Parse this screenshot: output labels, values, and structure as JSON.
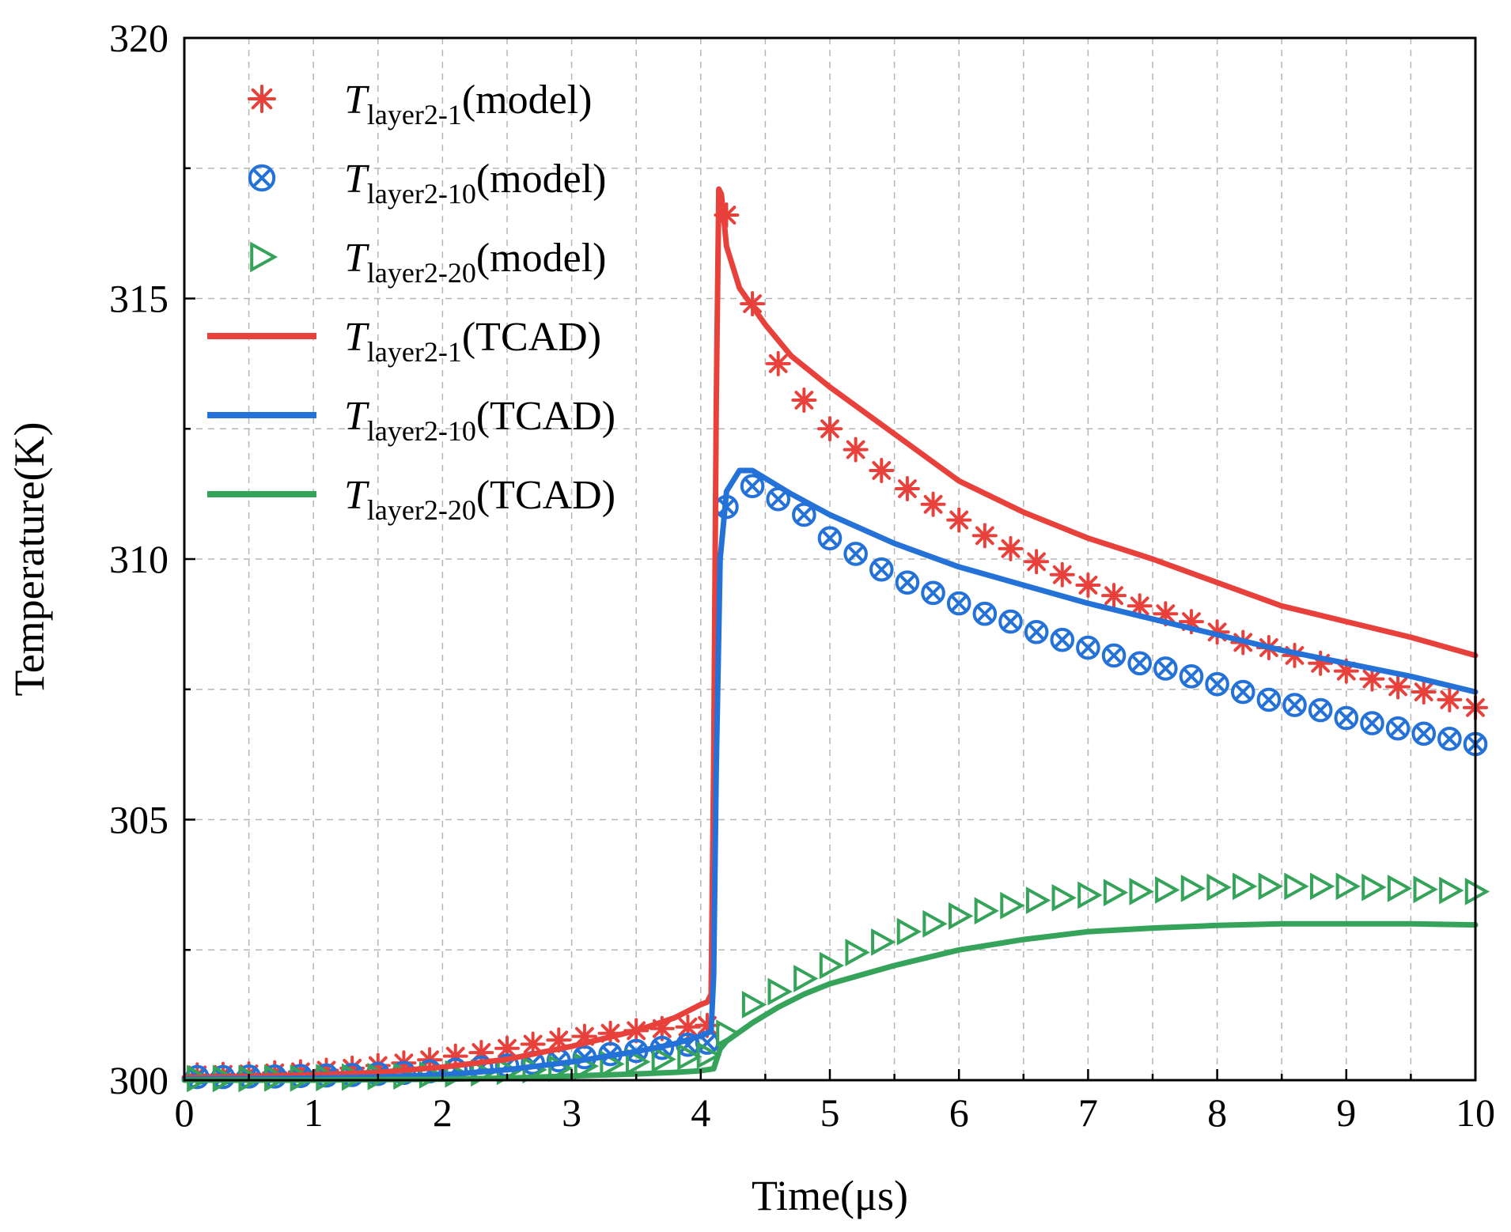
{
  "chart_data": {
    "type": "line",
    "xlabel": "Time(μs)",
    "ylabel": "Temperature(K)",
    "xlim": [
      0,
      10
    ],
    "ylim": [
      300,
      320
    ],
    "xticks": [
      0,
      1,
      2,
      3,
      4,
      5,
      6,
      7,
      8,
      9,
      10
    ],
    "yticks": [
      300,
      305,
      310,
      315,
      320
    ],
    "grid": true,
    "legend_position": "top-left",
    "series": [
      {
        "name": "T_layer2-1(model)",
        "legend_main": "T",
        "legend_sub": "layer2-1",
        "legend_suffix": "(model)",
        "color": "#e8413c",
        "style": "markers",
        "marker": "asterisk",
        "x": [
          0.1,
          0.3,
          0.5,
          0.7,
          0.9,
          1.1,
          1.3,
          1.5,
          1.7,
          1.9,
          2.1,
          2.3,
          2.5,
          2.7,
          2.9,
          3.1,
          3.3,
          3.5,
          3.7,
          3.9,
          4.05,
          4.2,
          4.4,
          4.6,
          4.8,
          5.0,
          5.2,
          5.4,
          5.6,
          5.8,
          6.0,
          6.2,
          6.4,
          6.6,
          6.8,
          7.0,
          7.2,
          7.4,
          7.6,
          7.8,
          8.0,
          8.2,
          8.4,
          8.6,
          8.8,
          9.0,
          9.2,
          9.4,
          9.6,
          9.8,
          10.0
        ],
        "y": [
          300.1,
          300.11,
          300.12,
          300.14,
          300.16,
          300.19,
          300.23,
          300.28,
          300.33,
          300.39,
          300.46,
          300.53,
          300.61,
          300.69,
          300.77,
          300.84,
          300.9,
          300.95,
          300.99,
          301.02,
          301.05,
          316.6,
          314.9,
          313.75,
          313.05,
          312.5,
          312.1,
          311.7,
          311.35,
          311.05,
          310.75,
          310.45,
          310.2,
          309.95,
          309.7,
          309.5,
          309.3,
          309.1,
          308.95,
          308.8,
          308.6,
          308.4,
          308.3,
          308.15,
          308.0,
          307.85,
          307.7,
          307.55,
          307.45,
          307.3,
          307.15
        ]
      },
      {
        "name": "T_layer2-10(model)",
        "legend_main": "T",
        "legend_sub": "layer2-10",
        "legend_suffix": "(model)",
        "color": "#2472d8",
        "style": "markers",
        "marker": "circle-x",
        "x": [
          0.1,
          0.3,
          0.5,
          0.7,
          0.9,
          1.1,
          1.3,
          1.5,
          1.7,
          1.9,
          2.1,
          2.3,
          2.5,
          2.7,
          2.9,
          3.1,
          3.3,
          3.5,
          3.7,
          3.9,
          4.05,
          4.2,
          4.4,
          4.6,
          4.8,
          5.0,
          5.2,
          5.4,
          5.6,
          5.8,
          6.0,
          6.2,
          6.4,
          6.6,
          6.8,
          7.0,
          7.2,
          7.4,
          7.6,
          7.8,
          8.0,
          8.2,
          8.4,
          8.6,
          8.8,
          9.0,
          9.2,
          9.4,
          9.6,
          9.8,
          10.0
        ],
        "y": [
          300.06,
          300.06,
          300.07,
          300.07,
          300.08,
          300.09,
          300.1,
          300.12,
          300.14,
          300.17,
          300.2,
          300.24,
          300.28,
          300.33,
          300.38,
          300.44,
          300.5,
          300.56,
          300.62,
          300.68,
          300.72,
          311.0,
          311.4,
          311.15,
          310.85,
          310.4,
          310.1,
          309.8,
          309.55,
          309.35,
          309.15,
          308.95,
          308.8,
          308.6,
          308.45,
          308.3,
          308.15,
          308.0,
          307.9,
          307.75,
          307.6,
          307.45,
          307.3,
          307.2,
          307.1,
          306.95,
          306.85,
          306.75,
          306.65,
          306.55,
          306.45
        ]
      },
      {
        "name": "T_layer2-20(model)",
        "legend_main": "T",
        "legend_sub": "layer2-20",
        "legend_suffix": "(model)",
        "color": "#36a35a",
        "style": "markers",
        "marker": "triangle-right",
        "x": [
          0.1,
          0.3,
          0.5,
          0.7,
          0.9,
          1.1,
          1.3,
          1.5,
          1.7,
          1.9,
          2.1,
          2.3,
          2.5,
          2.7,
          2.9,
          3.1,
          3.3,
          3.5,
          3.7,
          3.9,
          4.05,
          4.2,
          4.4,
          4.6,
          4.8,
          5.0,
          5.2,
          5.4,
          5.6,
          5.8,
          6.0,
          6.2,
          6.4,
          6.6,
          6.8,
          7.0,
          7.2,
          7.4,
          7.6,
          7.8,
          8.0,
          8.2,
          8.4,
          8.6,
          8.8,
          9.0,
          9.2,
          9.4,
          9.6,
          9.8,
          10.0
        ],
        "y": [
          300.03,
          300.03,
          300.03,
          300.04,
          300.04,
          300.05,
          300.06,
          300.07,
          300.08,
          300.1,
          300.12,
          300.14,
          300.17,
          300.2,
          300.23,
          300.27,
          300.31,
          300.35,
          300.4,
          300.45,
          300.48,
          300.9,
          301.45,
          301.7,
          301.95,
          302.2,
          302.45,
          302.65,
          302.85,
          303.0,
          303.15,
          303.25,
          303.35,
          303.45,
          303.5,
          303.55,
          303.6,
          303.62,
          303.65,
          303.68,
          303.7,
          303.72,
          303.72,
          303.72,
          303.72,
          303.72,
          303.7,
          303.68,
          303.66,
          303.64,
          303.62
        ]
      },
      {
        "name": "T_layer2-1(TCAD)",
        "legend_main": "T",
        "legend_sub": "layer2-1",
        "legend_suffix": "(TCAD)",
        "color": "#e8413c",
        "style": "line",
        "x": [
          0,
          0.5,
          1,
          1.5,
          2,
          2.5,
          3,
          3.5,
          3.8,
          4.0,
          4.05,
          4.08,
          4.1,
          4.12,
          4.14,
          4.16,
          4.2,
          4.3,
          4.5,
          4.7,
          5.0,
          5.5,
          6.0,
          6.5,
          7.0,
          7.5,
          8.0,
          8.5,
          9.0,
          9.5,
          10.0
        ],
        "y": [
          300.05,
          300.07,
          300.1,
          300.15,
          300.25,
          300.4,
          300.65,
          300.95,
          301.2,
          301.45,
          301.5,
          301.65,
          306.0,
          313.0,
          317.1,
          317.0,
          316.0,
          315.2,
          314.5,
          313.9,
          313.3,
          312.4,
          311.5,
          310.9,
          310.4,
          310.0,
          309.55,
          309.1,
          308.8,
          308.5,
          308.15
        ]
      },
      {
        "name": "T_layer2-10(TCAD)",
        "legend_main": "T",
        "legend_sub": "layer2-10",
        "legend_suffix": "(TCAD)",
        "color": "#2472d8",
        "style": "line",
        "x": [
          0,
          0.5,
          1,
          1.5,
          2,
          2.5,
          3,
          3.5,
          3.8,
          4.0,
          4.05,
          4.08,
          4.1,
          4.12,
          4.15,
          4.2,
          4.3,
          4.4,
          4.5,
          4.7,
          5.0,
          5.5,
          6.0,
          6.5,
          7.0,
          7.5,
          8.0,
          8.5,
          9.0,
          9.5,
          10.0
        ],
        "y": [
          300.02,
          300.03,
          300.04,
          300.06,
          300.1,
          300.2,
          300.35,
          300.55,
          300.7,
          300.85,
          300.9,
          300.95,
          302.0,
          306.0,
          310.0,
          311.3,
          311.7,
          311.7,
          311.55,
          311.25,
          310.85,
          310.3,
          309.85,
          309.5,
          309.15,
          308.85,
          308.55,
          308.25,
          308.0,
          307.75,
          307.45
        ]
      },
      {
        "name": "T_layer2-20(TCAD)",
        "legend_main": "T",
        "legend_sub": "layer2-20",
        "legend_suffix": "(TCAD)",
        "color": "#36a35a",
        "style": "line",
        "x": [
          0,
          0.5,
          1,
          1.5,
          2,
          2.5,
          3,
          3.5,
          3.8,
          4.0,
          4.05,
          4.1,
          4.15,
          4.2,
          4.4,
          4.6,
          4.8,
          5.0,
          5.5,
          6.0,
          6.5,
          7.0,
          7.5,
          8.0,
          8.5,
          9.0,
          9.5,
          10.0
        ],
        "y": [
          300.0,
          300.0,
          300.0,
          300.01,
          300.02,
          300.04,
          300.08,
          300.12,
          300.15,
          300.18,
          300.2,
          300.22,
          300.6,
          300.75,
          301.1,
          301.4,
          301.65,
          301.85,
          302.2,
          302.5,
          302.7,
          302.85,
          302.92,
          302.97,
          303.0,
          303.0,
          303.0,
          302.98
        ]
      }
    ]
  }
}
